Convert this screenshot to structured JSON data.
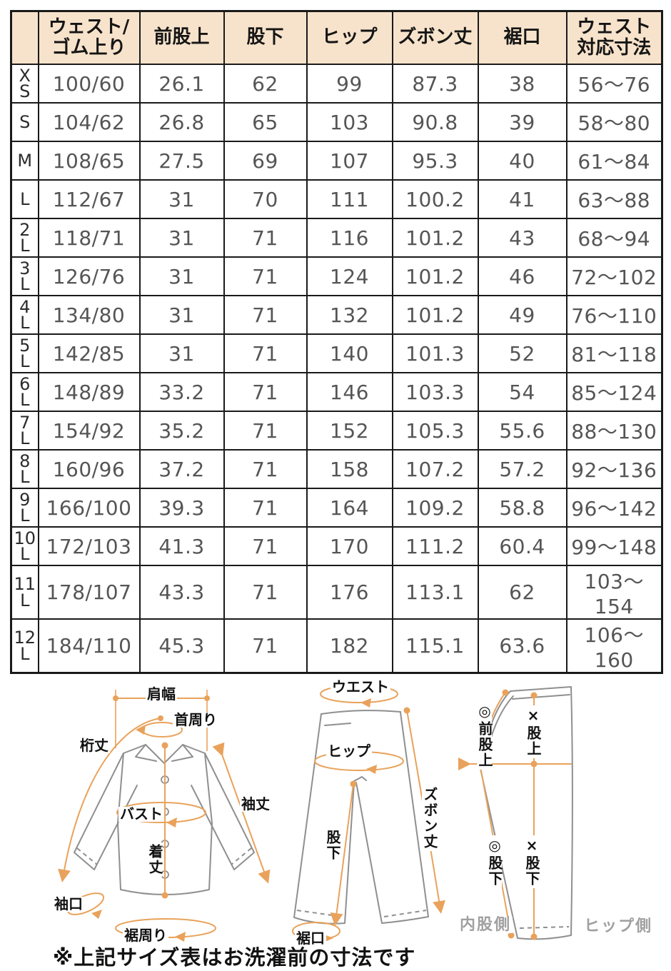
{
  "table": {
    "headers": [
      "",
      "ウェスト/\nゴム上り",
      "前股上",
      "股下",
      "ヒップ",
      "ズボン丈",
      "裾口",
      "ウェスト\n対応寸法"
    ],
    "rows": [
      {
        "size": "X\nS",
        "cells": [
          "100/60",
          "26.1",
          "62",
          "99",
          "87.3",
          "38",
          "56〜76"
        ]
      },
      {
        "size": "S",
        "cells": [
          "104/62",
          "26.8",
          "65",
          "103",
          "90.8",
          "39",
          "58〜80"
        ]
      },
      {
        "size": "M",
        "cells": [
          "108/65",
          "27.5",
          "69",
          "107",
          "95.3",
          "40",
          "61〜84"
        ]
      },
      {
        "size": "L",
        "cells": [
          "112/67",
          "31",
          "70",
          "111",
          "100.2",
          "41",
          "63〜88"
        ]
      },
      {
        "size": "2\nL",
        "cells": [
          "118/71",
          "31",
          "71",
          "116",
          "101.2",
          "43",
          "68〜94"
        ]
      },
      {
        "size": "3\nL",
        "cells": [
          "126/76",
          "31",
          "71",
          "124",
          "101.2",
          "46",
          "72〜102"
        ]
      },
      {
        "size": "4\nL",
        "cells": [
          "134/80",
          "31",
          "71",
          "132",
          "101.2",
          "49",
          "76〜110"
        ]
      },
      {
        "size": "5\nL",
        "cells": [
          "142/85",
          "31",
          "71",
          "140",
          "101.3",
          "52",
          "81〜118"
        ]
      },
      {
        "size": "6\nL",
        "cells": [
          "148/89",
          "33.2",
          "71",
          "146",
          "103.3",
          "54",
          "85〜124"
        ]
      },
      {
        "size": "7\nL",
        "cells": [
          "154/92",
          "35.2",
          "71",
          "152",
          "105.3",
          "55.6",
          "88〜130"
        ]
      },
      {
        "size": "8\nL",
        "cells": [
          "160/96",
          "37.2",
          "71",
          "158",
          "107.2",
          "57.2",
          "92〜136"
        ]
      },
      {
        "size": "9\nL",
        "cells": [
          "166/100",
          "39.3",
          "71",
          "164",
          "109.2",
          "58.8",
          "96〜142"
        ]
      },
      {
        "size": "10\nL",
        "cells": [
          "172/103",
          "41.3",
          "71",
          "170",
          "111.2",
          "60.4",
          "99〜148"
        ]
      },
      {
        "size": "11\nL",
        "cells": [
          "178/107",
          "43.3",
          "71",
          "176",
          "113.1",
          "62",
          "103〜154"
        ]
      },
      {
        "size": "12\nL",
        "cells": [
          "184/110",
          "45.3",
          "71",
          "182",
          "115.1",
          "63.6",
          "106〜160"
        ]
      }
    ]
  },
  "diagrams": {
    "shirt": {
      "shoulder_width": "肩幅",
      "neck_around": "首周り",
      "yuki_length": "桁丈",
      "bust": "バスト",
      "body_length": "着丈",
      "sleeve_length": "袖丈",
      "cuff_opening": "袖口",
      "hem_around": "裾周り"
    },
    "pants_front": {
      "waist": "ウエスト",
      "hip": "ヒップ",
      "pants_length": "ズボン丈",
      "inseam": "股下",
      "hem_opening": "裾口"
    },
    "pants_side": {
      "front_rise": "◎前股上",
      "rise": "×股上",
      "inseam_a": "◎股下",
      "inseam_b": "×股下",
      "inner_side": "内股側",
      "hip_side": "ヒップ側"
    }
  },
  "note": "※上記サイズ表はお洗濯前の寸法です",
  "colors": {
    "accent": "#e9a25b",
    "header_bg": "#f7e3cb",
    "garment_outline": "#8f8f8f",
    "muted_label": "#a0a0a0",
    "table_border": "#1a1a1a",
    "number_text": "#555555"
  }
}
